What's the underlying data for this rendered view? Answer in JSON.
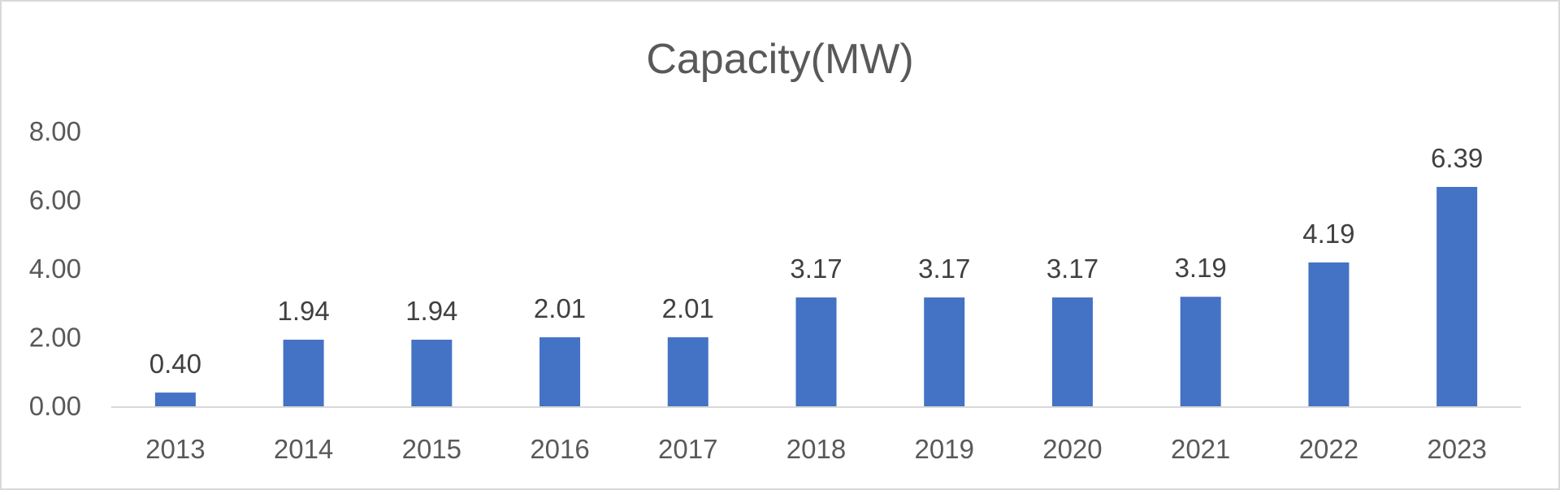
{
  "chart_data": {
    "type": "bar",
    "title": "Capacity(MW)",
    "xlabel": "",
    "ylabel": "",
    "categories": [
      "2013",
      "2014",
      "2015",
      "2016",
      "2017",
      "2018",
      "2019",
      "2020",
      "2021",
      "2022",
      "2023"
    ],
    "values": [
      0.4,
      1.94,
      1.94,
      2.01,
      2.01,
      3.17,
      3.17,
      3.17,
      3.19,
      4.19,
      6.39
    ],
    "data_labels": [
      "0.40",
      "1.94",
      "1.94",
      "2.01",
      "2.01",
      "3.17",
      "3.17",
      "3.17",
      "3.19",
      "4.19",
      "6.39"
    ],
    "y_ticks": [
      "0.00",
      "2.00",
      "4.00",
      "6.00",
      "8.00"
    ],
    "y_tick_values": [
      0,
      2,
      4,
      6,
      8
    ],
    "ylim": [
      0,
      8
    ],
    "grid": false,
    "legend": "none",
    "bar_color": "#4472c4",
    "axis_color": "#d9d9d9"
  }
}
